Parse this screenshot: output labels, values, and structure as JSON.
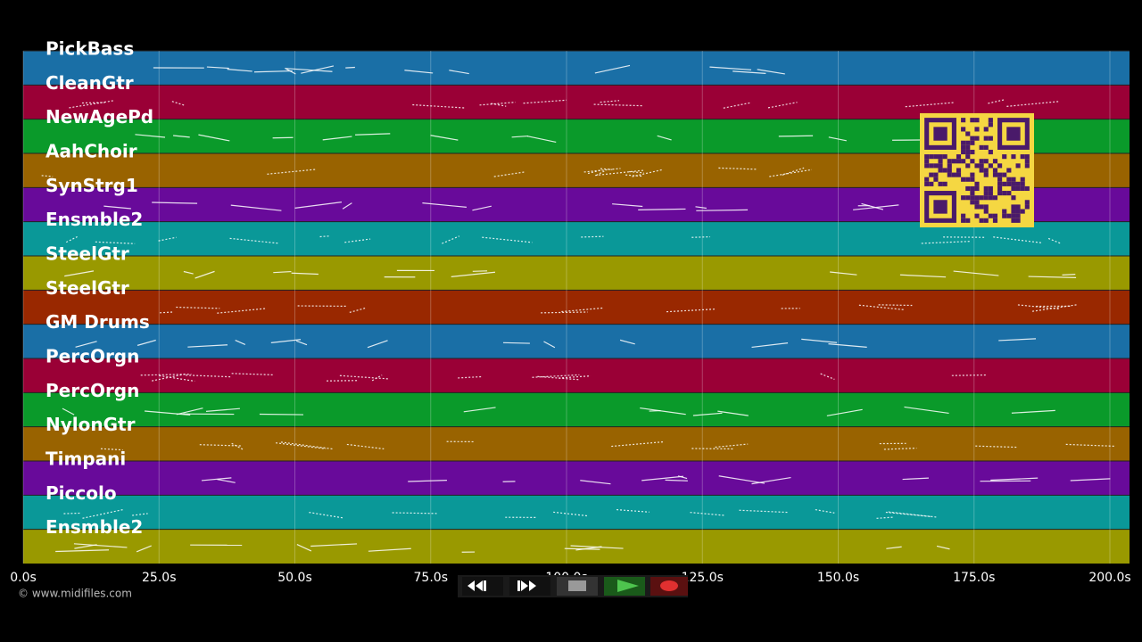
{
  "tracks": [
    {
      "name": "PickBass",
      "color": "#1a6fa6"
    },
    {
      "name": "CleanGtr",
      "color": "#9a0036"
    },
    {
      "name": "NewAgePd",
      "color": "#0a9a2a"
    },
    {
      "name": "AahChoir",
      "color": "#996300"
    },
    {
      "name": "SynStrg1",
      "color": "#680a9a"
    },
    {
      "name": "Ensmble2",
      "color": "#0a9898"
    },
    {
      "name": "SteelGtr",
      "color": "#999900"
    },
    {
      "name": "SteelGtr",
      "color": "#992800"
    },
    {
      "name": "GM Drums",
      "color": "#1a6fa6"
    },
    {
      "name": "PercOrgn",
      "color": "#9a0036"
    },
    {
      "name": "PercOrgn",
      "color": "#0a9a2a"
    },
    {
      "name": "NylonGtr",
      "color": "#996300"
    },
    {
      "name": "Timpani",
      "color": "#680a9a"
    },
    {
      "name": "Piccolo",
      "color": "#0a9898"
    },
    {
      "name": "Ensmble2",
      "color": "#999900"
    }
  ],
  "axis": {
    "ticks": [
      "0.0s",
      "25.0s",
      "50.0s",
      "75.0s",
      "100.0s",
      "125.0s",
      "150.0s",
      "175.0s",
      "200.0s"
    ]
  },
  "footer": {
    "copyright": "© www.midifiles.com"
  }
}
